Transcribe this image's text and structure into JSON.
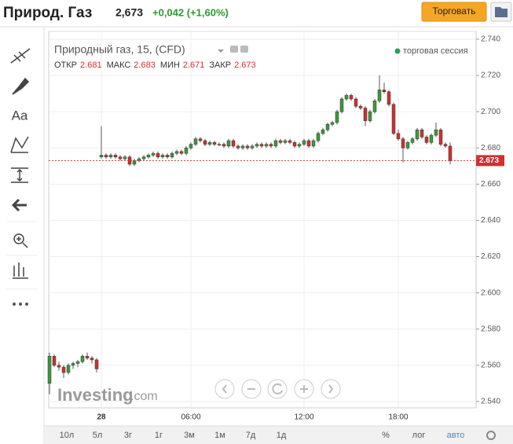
{
  "header": {
    "title": "Природ. Газ",
    "price": "2,673",
    "change": "+0,042 (+1,60%)",
    "button": "Торговать"
  },
  "toolbar": {
    "text_tool": "Aa"
  },
  "chart_data": {
    "type": "candlestick",
    "title": "Природный газ, 15, (CFD)",
    "ohlc_labels": [
      "ОТКР",
      "МАКС",
      "МИН",
      "ЗАКР"
    ],
    "session": "торговая сессия",
    "watermark": "Investing",
    "watermark_suffix": ".com",
    "up_color": "#3a9b3a",
    "down_color": "#d03030",
    "categories": [
      null,
      null,
      null,
      null,
      null,
      null,
      null,
      null,
      null,
      null,
      null,
      "28",
      null,
      null,
      null,
      null,
      null,
      null,
      null,
      null,
      null,
      null,
      null,
      null,
      null,
      null,
      null,
      null,
      null,
      null,
      "06:00",
      null,
      null,
      null,
      null,
      null,
      null,
      null,
      null,
      null,
      null,
      null,
      null,
      null,
      null,
      null,
      null,
      null,
      null,
      null,
      null,
      null,
      null,
      null,
      "12:00",
      null,
      null,
      null,
      null,
      null,
      null,
      null,
      null,
      null,
      null,
      null,
      null,
      null,
      null,
      null,
      null,
      null,
      null,
      null,
      "18:00",
      null,
      null,
      null,
      null,
      null,
      null,
      null
    ],
    "ohlc": [
      [
        2.55,
        2.567,
        2.544,
        2.565
      ],
      [
        2.565,
        2.566,
        2.559,
        2.56
      ],
      [
        2.56,
        2.562,
        2.557,
        2.559
      ],
      [
        2.559,
        2.56,
        2.553,
        2.556
      ],
      [
        2.556,
        2.561,
        2.555,
        2.56
      ],
      [
        2.56,
        2.562,
        2.558,
        2.561
      ],
      [
        2.561,
        2.563,
        2.559,
        2.562
      ],
      [
        2.562,
        2.566,
        2.561,
        2.565
      ],
      [
        2.565,
        2.567,
        2.563,
        2.564
      ],
      [
        2.564,
        2.565,
        2.561,
        2.563
      ],
      [
        2.563,
        2.564,
        2.556,
        2.558
      ],
      [
        2.675,
        2.692,
        2.674,
        2.676
      ],
      [
        2.676,
        2.677,
        2.674,
        2.675
      ],
      [
        2.675,
        2.677,
        2.674,
        2.676
      ],
      [
        2.676,
        2.677,
        2.674,
        2.675
      ],
      [
        2.675,
        2.676,
        2.673,
        2.674
      ],
      [
        2.674,
        2.676,
        2.673,
        2.675
      ],
      [
        2.675,
        2.676,
        2.67,
        2.671
      ],
      [
        2.671,
        2.674,
        2.67,
        2.673
      ],
      [
        2.673,
        2.675,
        2.672,
        2.674
      ],
      [
        2.674,
        2.676,
        2.673,
        2.675
      ],
      [
        2.675,
        2.677,
        2.674,
        2.676
      ],
      [
        2.676,
        2.678,
        2.675,
        2.677
      ],
      [
        2.677,
        2.678,
        2.674,
        2.675
      ],
      [
        2.675,
        2.677,
        2.674,
        2.676
      ],
      [
        2.676,
        2.677,
        2.674,
        2.675
      ],
      [
        2.675,
        2.678,
        2.674,
        2.677
      ],
      [
        2.677,
        2.679,
        2.676,
        2.678
      ],
      [
        2.678,
        2.679,
        2.676,
        2.677
      ],
      [
        2.677,
        2.681,
        2.676,
        2.68
      ],
      [
        2.68,
        2.683,
        2.679,
        2.682
      ],
      [
        2.682,
        2.686,
        2.681,
        2.685
      ],
      [
        2.685,
        2.686,
        2.683,
        2.684
      ],
      [
        2.684,
        2.685,
        2.681,
        2.682
      ],
      [
        2.682,
        2.684,
        2.681,
        2.683
      ],
      [
        2.683,
        2.684,
        2.681,
        2.682
      ],
      [
        2.682,
        2.683,
        2.681,
        2.682
      ],
      [
        2.682,
        2.683,
        2.68,
        2.681
      ],
      [
        2.681,
        2.685,
        2.68,
        2.684
      ],
      [
        2.684,
        2.685,
        2.68,
        2.681
      ],
      [
        2.681,
        2.682,
        2.679,
        2.68
      ],
      [
        2.68,
        2.682,
        2.679,
        2.681
      ],
      [
        2.681,
        2.682,
        2.679,
        2.68
      ],
      [
        2.68,
        2.682,
        2.679,
        2.681
      ],
      [
        2.681,
        2.683,
        2.68,
        2.682
      ],
      [
        2.682,
        2.683,
        2.68,
        2.681
      ],
      [
        2.681,
        2.683,
        2.68,
        2.682
      ],
      [
        2.682,
        2.683,
        2.68,
        2.681
      ],
      [
        2.681,
        2.685,
        2.68,
        2.684
      ],
      [
        2.684,
        2.685,
        2.682,
        2.683
      ],
      [
        2.683,
        2.685,
        2.682,
        2.684
      ],
      [
        2.684,
        2.685,
        2.682,
        2.683
      ],
      [
        2.683,
        2.684,
        2.68,
        2.681
      ],
      [
        2.681,
        2.683,
        2.68,
        2.682
      ],
      [
        2.682,
        2.685,
        2.681,
        2.684
      ],
      [
        2.684,
        2.685,
        2.68,
        2.681
      ],
      [
        2.681,
        2.685,
        2.68,
        2.684
      ],
      [
        2.684,
        2.689,
        2.683,
        2.688
      ],
      [
        2.688,
        2.691,
        2.687,
        2.69
      ],
      [
        2.69,
        2.694,
        2.689,
        2.693
      ],
      [
        2.693,
        2.695,
        2.692,
        2.694
      ],
      [
        2.694,
        2.701,
        2.693,
        2.7
      ],
      [
        2.7,
        2.708,
        2.699,
        2.707
      ],
      [
        2.707,
        2.71,
        2.706,
        2.709
      ],
      [
        2.709,
        2.71,
        2.706,
        2.707
      ],
      [
        2.707,
        2.708,
        2.702,
        2.703
      ],
      [
        2.703,
        2.704,
        2.701,
        2.702
      ],
      [
        2.702,
        2.703,
        2.692,
        2.695
      ],
      [
        2.695,
        2.701,
        2.694,
        2.7
      ],
      [
        2.7,
        2.707,
        2.699,
        2.706
      ],
      [
        2.706,
        2.72,
        2.705,
        2.712
      ],
      [
        2.712,
        2.716,
        2.71,
        2.711
      ],
      [
        2.711,
        2.712,
        2.703,
        2.704
      ],
      [
        2.704,
        2.705,
        2.687,
        2.688
      ],
      [
        2.688,
        2.69,
        2.684,
        2.685
      ],
      [
        2.685,
        2.686,
        2.672,
        2.68
      ],
      [
        2.68,
        2.684,
        2.679,
        2.683
      ],
      [
        2.683,
        2.686,
        2.682,
        2.685
      ],
      [
        2.685,
        2.691,
        2.684,
        2.69
      ],
      [
        2.69,
        2.691,
        2.685,
        2.686
      ],
      [
        2.686,
        2.687,
        2.682,
        2.683
      ],
      [
        2.683,
        2.688,
        2.682,
        2.687
      ],
      [
        2.687,
        2.694,
        2.686,
        2.69
      ],
      [
        2.69,
        2.691,
        2.681,
        2.682
      ],
      [
        2.682,
        2.683,
        2.68,
        2.681
      ],
      [
        2.681,
        2.683,
        2.671,
        2.673
      ]
    ],
    "ylim": [
      2.5365,
      2.7443
    ],
    "yticks": [
      {
        "value": 2.54,
        "label": "2.540"
      },
      {
        "value": 2.56,
        "label": "2.560"
      },
      {
        "value": 2.58,
        "label": "2.580"
      },
      {
        "value": 2.6,
        "label": "2.600"
      },
      {
        "value": 2.62,
        "label": "2.620"
      },
      {
        "value": 2.64,
        "label": "2.640"
      },
      {
        "value": 2.66,
        "label": "2.660"
      },
      {
        "value": 2.68,
        "label": "2.680"
      },
      {
        "value": 2.7,
        "label": "2.700"
      },
      {
        "value": 2.72,
        "label": "2.720"
      },
      {
        "value": 2.74,
        "label": "2.740"
      }
    ],
    "grid": true
  },
  "bottom_bar": {
    "ranges": [
      "10л",
      "5л",
      "3г",
      "1г",
      "3м",
      "1м",
      "7д",
      "1д"
    ],
    "percent": "%",
    "log": "лог",
    "auto": "авто"
  }
}
